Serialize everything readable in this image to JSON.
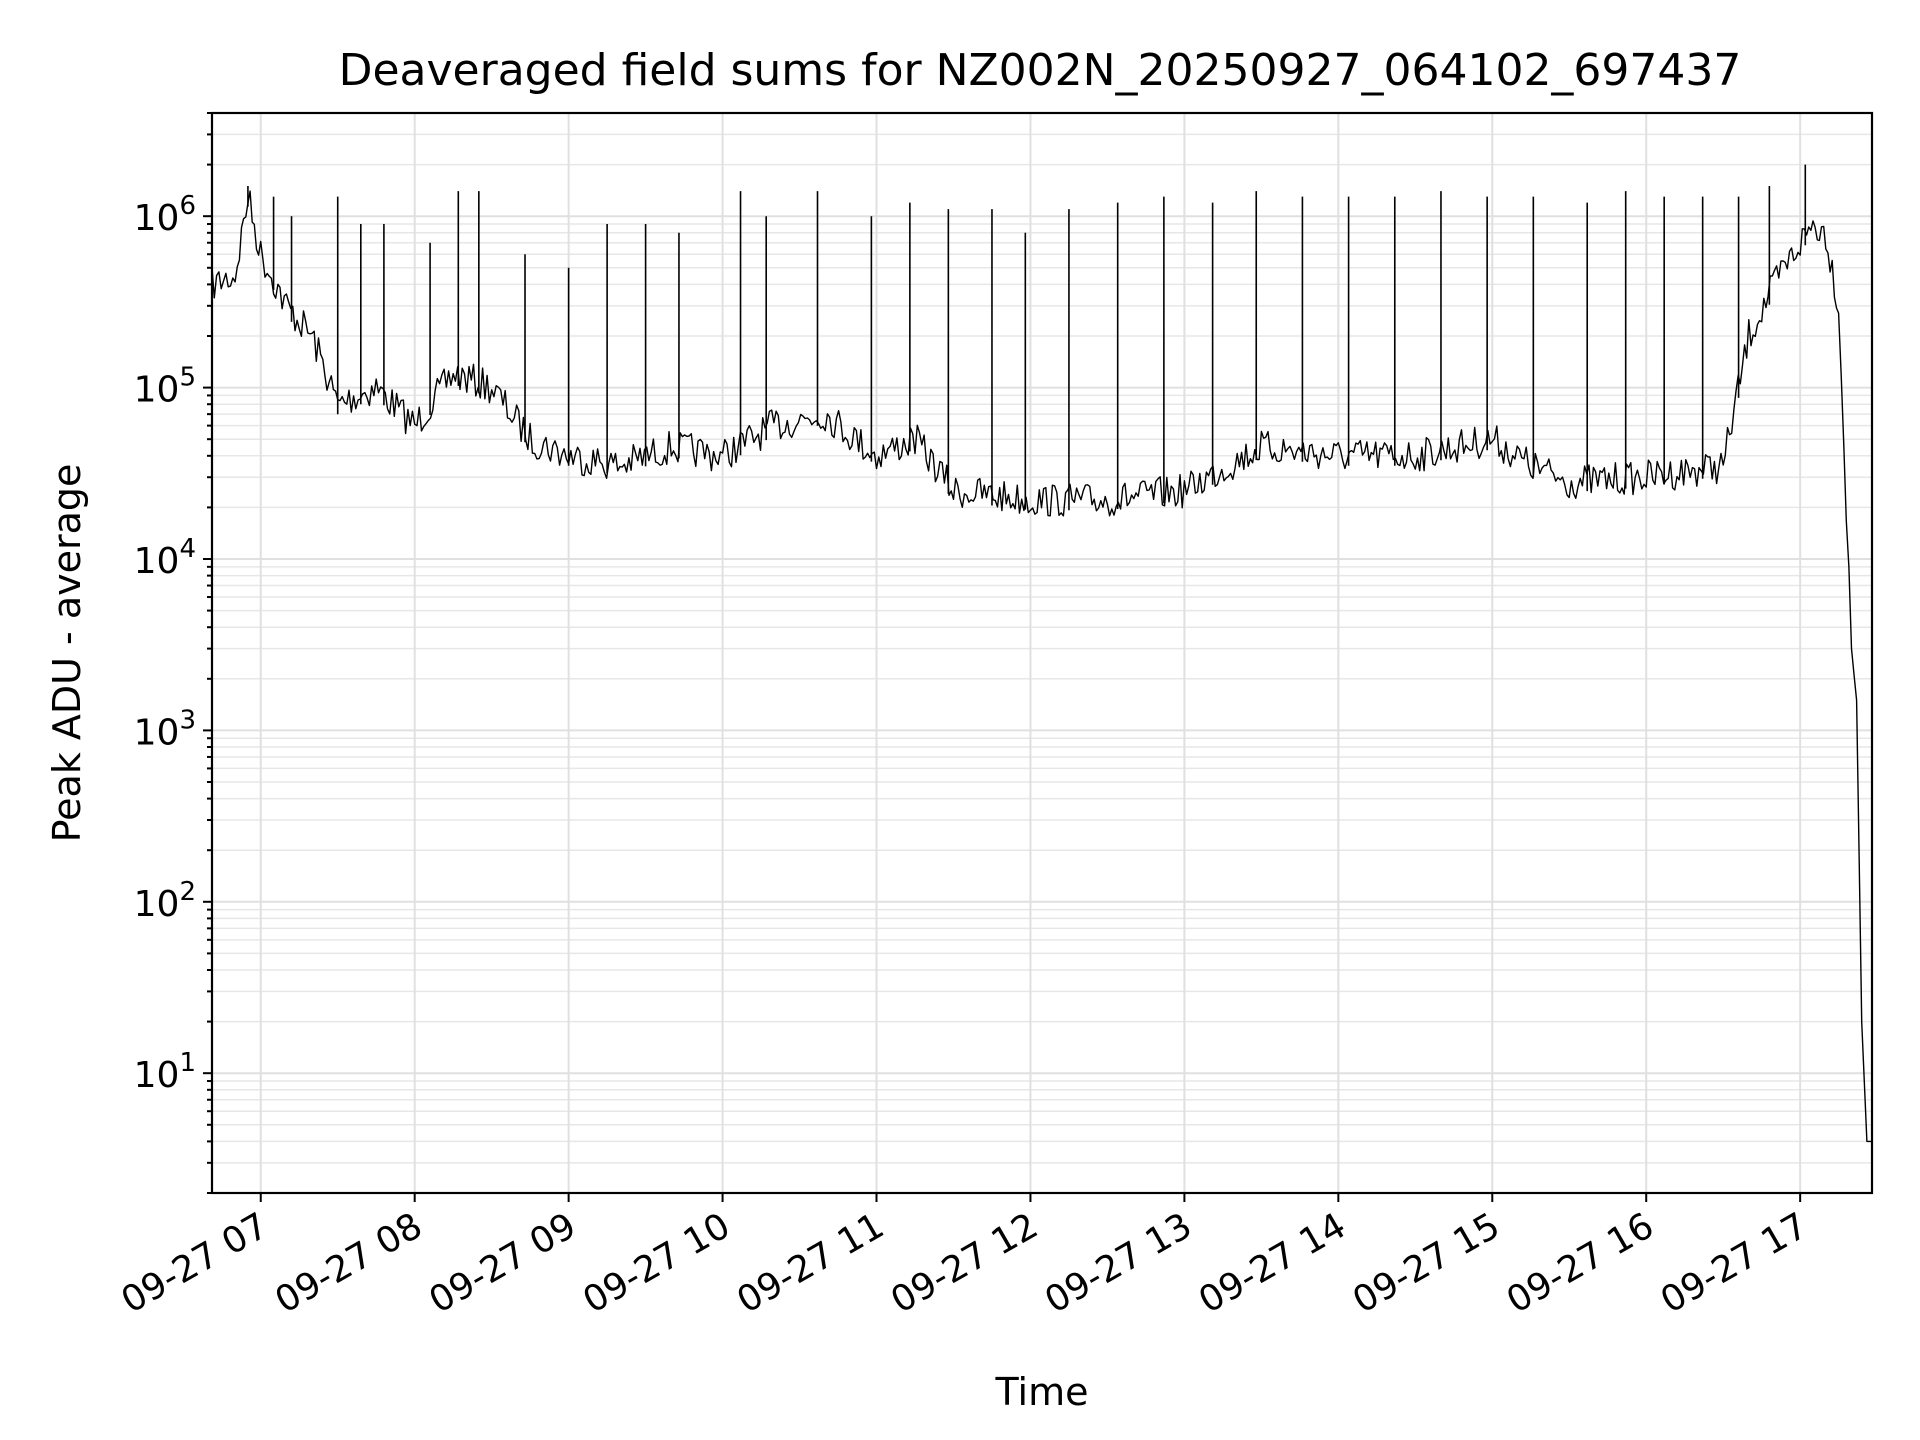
{
  "chart_data": {
    "type": "line",
    "title": "Deaveraged field sums for NZ002N_20250927_064102_697437",
    "xlabel": "Time",
    "ylabel": "Peak ADU - average",
    "yscale": "log",
    "grid": true,
    "ylim": [
      2,
      4000000
    ],
    "xlim": [
      "2025-09-27 06:41",
      "2025-09-27 17:28"
    ],
    "x_tick_labels": [
      "09-27 07",
      "09-27 08",
      "09-27 09",
      "09-27 10",
      "09-27 11",
      "09-27 12",
      "09-27 13",
      "09-27 14",
      "09-27 15",
      "09-27 16",
      "09-27 17"
    ],
    "y_ticks": [
      {
        "value": 1000000,
        "base": "10",
        "exp": "6"
      },
      {
        "value": 100000,
        "base": "10",
        "exp": "5"
      },
      {
        "value": 10000,
        "base": "10",
        "exp": "4"
      },
      {
        "value": 1000,
        "base": "10",
        "exp": "3"
      },
      {
        "value": 100,
        "base": "10",
        "exp": "2"
      },
      {
        "value": 10,
        "base": "10",
        "exp": "1"
      }
    ],
    "line_color": "#000000",
    "series": [
      {
        "x": [
          "2025-09-27 06:41",
          "2025-09-27 06:50",
          "2025-09-27 06:55",
          "2025-09-27 07:00",
          "2025-09-27 07:10",
          "2025-09-27 07:20",
          "2025-09-27 07:30",
          "2025-09-27 07:45",
          "2025-09-27 08:00",
          "2025-09-27 08:15",
          "2025-09-27 08:30",
          "2025-09-27 08:45",
          "2025-09-27 09:00",
          "2025-09-27 09:20",
          "2025-09-27 09:40",
          "2025-09-27 10:00",
          "2025-09-27 10:20",
          "2025-09-27 10:40",
          "2025-09-27 11:00",
          "2025-09-27 11:15",
          "2025-09-27 11:30",
          "2025-09-27 12:00",
          "2025-09-27 12:30",
          "2025-09-27 13:00",
          "2025-09-27 13:30",
          "2025-09-27 14:00",
          "2025-09-27 14:30",
          "2025-09-27 15:00",
          "2025-09-27 15:15",
          "2025-09-27 15:30",
          "2025-09-27 16:00",
          "2025-09-27 16:30",
          "2025-09-27 16:40",
          "2025-09-27 16:50",
          "2025-09-27 17:00",
          "2025-09-27 17:05",
          "2025-09-27 17:10",
          "2025-09-27 17:15",
          "2025-09-27 17:18",
          "2025-09-27 17:20",
          "2025-09-27 17:22",
          "2025-09-27 17:24",
          "2025-09-27 17:26",
          "2025-09-27 17:28"
        ],
        "y": [
          400000,
          450000,
          1300000,
          600000,
          300000,
          200000,
          80000,
          100000,
          60000,
          120000,
          100000,
          50000,
          40000,
          35000,
          45000,
          40000,
          60000,
          70000,
          40000,
          50000,
          25000,
          22000,
          22000,
          25000,
          45000,
          40000,
          40000,
          50000,
          35000,
          28000,
          30000,
          35000,
          200000,
          400000,
          700000,
          900000,
          800000,
          300000,
          20000,
          3000,
          1500,
          20,
          4,
          4
        ]
      }
    ],
    "spikes": [
      {
        "x": "2025-09-27 06:55",
        "y": 1500000
      },
      {
        "x": "2025-09-27 07:05",
        "y": 1300000
      },
      {
        "x": "2025-09-27 07:12",
        "y": 1000000
      },
      {
        "x": "2025-09-27 07:30",
        "y": 1300000
      },
      {
        "x": "2025-09-27 07:39",
        "y": 900000
      },
      {
        "x": "2025-09-27 07:48",
        "y": 900000
      },
      {
        "x": "2025-09-27 08:06",
        "y": 700000
      },
      {
        "x": "2025-09-27 08:17",
        "y": 1400000
      },
      {
        "x": "2025-09-27 08:25",
        "y": 1400000
      },
      {
        "x": "2025-09-27 08:43",
        "y": 600000
      },
      {
        "x": "2025-09-27 09:00",
        "y": 500000
      },
      {
        "x": "2025-09-27 09:15",
        "y": 900000
      },
      {
        "x": "2025-09-27 09:30",
        "y": 900000
      },
      {
        "x": "2025-09-27 09:43",
        "y": 800000
      },
      {
        "x": "2025-09-27 10:07",
        "y": 1400000
      },
      {
        "x": "2025-09-27 10:17",
        "y": 1000000
      },
      {
        "x": "2025-09-27 10:37",
        "y": 1400000
      },
      {
        "x": "2025-09-27 10:58",
        "y": 1000000
      },
      {
        "x": "2025-09-27 11:13",
        "y": 1200000
      },
      {
        "x": "2025-09-27 11:28",
        "y": 1100000
      },
      {
        "x": "2025-09-27 11:45",
        "y": 1100000
      },
      {
        "x": "2025-09-27 11:58",
        "y": 800000
      },
      {
        "x": "2025-09-27 12:15",
        "y": 1100000
      },
      {
        "x": "2025-09-27 12:34",
        "y": 1200000
      },
      {
        "x": "2025-09-27 12:52",
        "y": 1300000
      },
      {
        "x": "2025-09-27 13:11",
        "y": 1200000
      },
      {
        "x": "2025-09-27 13:28",
        "y": 1400000
      },
      {
        "x": "2025-09-27 13:46",
        "y": 1300000
      },
      {
        "x": "2025-09-27 14:04",
        "y": 1300000
      },
      {
        "x": "2025-09-27 14:22",
        "y": 1300000
      },
      {
        "x": "2025-09-27 14:40",
        "y": 1400000
      },
      {
        "x": "2025-09-27 14:58",
        "y": 1300000
      },
      {
        "x": "2025-09-27 15:16",
        "y": 1300000
      },
      {
        "x": "2025-09-27 15:37",
        "y": 1200000
      },
      {
        "x": "2025-09-27 15:52",
        "y": 1400000
      },
      {
        "x": "2025-09-27 16:07",
        "y": 1300000
      },
      {
        "x": "2025-09-27 16:22",
        "y": 1300000
      },
      {
        "x": "2025-09-27 16:36",
        "y": 1300000
      },
      {
        "x": "2025-09-27 16:48",
        "y": 1500000
      },
      {
        "x": "2025-09-27 17:02",
        "y": 2000000
      }
    ]
  }
}
